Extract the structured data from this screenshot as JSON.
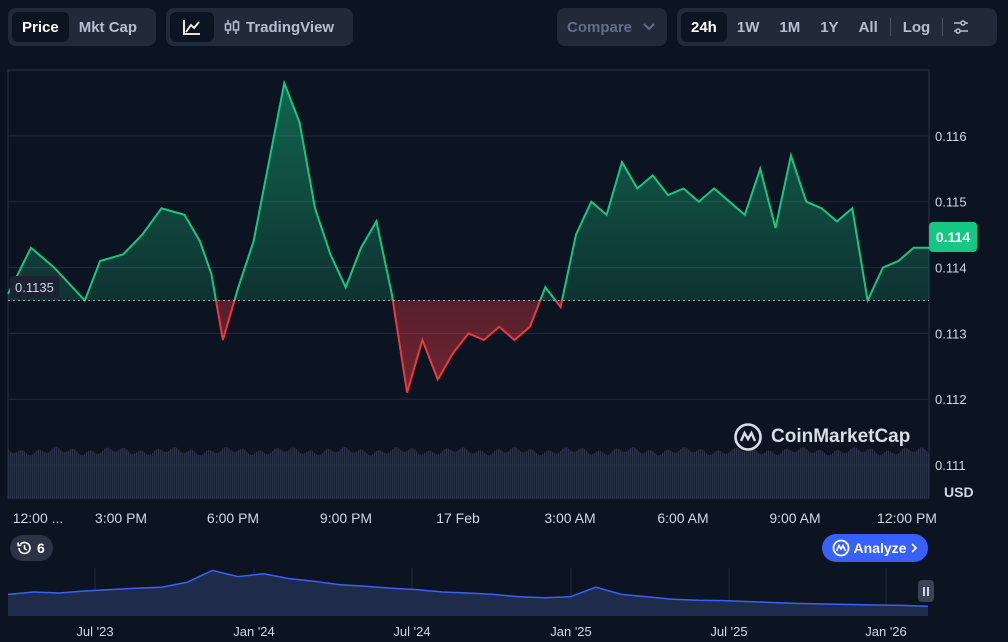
{
  "toolbar": {
    "type_tabs": [
      {
        "label": "Price",
        "active": true
      },
      {
        "label": "Mkt Cap",
        "active": false
      }
    ],
    "chart_style": {
      "line_icon": "line-chart-icon",
      "tradingview_icon": "candlestick-icon",
      "tradingview_label": "TradingView"
    },
    "compare_label": "Compare",
    "ranges": [
      {
        "label": "24h",
        "active": true
      },
      {
        "label": "1W",
        "active": false
      },
      {
        "label": "1M",
        "active": false
      },
      {
        "label": "1Y",
        "active": false
      },
      {
        "label": "All",
        "active": false
      }
    ],
    "log_label": "Log",
    "settings_icon": "sliders-icon"
  },
  "colors": {
    "up": "#16c784",
    "down": "#ea3943",
    "accent": "#3861fb"
  },
  "chart_data": {
    "type": "area",
    "baseline": 0.1135,
    "current_price": "0.114",
    "open_price_label": "0.1135",
    "currency": "USD",
    "ylim": [
      0.1105,
      0.117
    ],
    "yticks": [
      "0.116",
      "0.115",
      "0.114",
      "0.113",
      "0.112",
      "0.111"
    ],
    "xticks": [
      "12:00 ...",
      "3:00 PM",
      "6:00 PM",
      "9:00 PM",
      "17 Feb",
      "3:00 AM",
      "6:00 AM",
      "9:00 AM",
      "12:00 PM"
    ],
    "x": [
      0,
      0.6,
      1.2,
      2.0,
      2.4,
      3.0,
      3.5,
      4.0,
      4.6,
      5.0,
      5.3,
      5.6,
      6.0,
      6.4,
      6.8,
      7.2,
      7.6,
      8.0,
      8.4,
      8.8,
      9.2,
      9.6,
      10.0,
      10.4,
      10.8,
      11.2,
      11.6,
      12.0,
      12.4,
      12.8,
      13.2,
      13.6,
      14.0,
      14.4,
      14.8,
      15.2,
      15.6,
      16.0,
      16.4,
      16.8,
      17.2,
      17.6,
      18.0,
      18.4,
      18.8,
      19.2,
      19.6,
      20.0,
      20.4,
      20.8,
      21.2,
      21.6,
      22.0,
      22.4,
      22.8,
      23.2,
      23.6,
      24.0
    ],
    "prices": [
      0.1136,
      0.1143,
      0.114,
      0.1135,
      0.1141,
      0.1142,
      0.1145,
      0.1149,
      0.1148,
      0.1144,
      0.1139,
      0.1129,
      0.1137,
      0.1144,
      0.1156,
      0.1168,
      0.1162,
      0.1149,
      0.1142,
      0.1137,
      0.1143,
      0.1147,
      0.1136,
      0.1121,
      0.1129,
      0.1123,
      0.1127,
      0.113,
      0.1129,
      0.1131,
      0.1129,
      0.1131,
      0.1137,
      0.1134,
      0.1145,
      0.115,
      0.1148,
      0.1156,
      0.1152,
      0.1154,
      0.1151,
      0.1152,
      0.115,
      0.1152,
      0.115,
      0.1148,
      0.1155,
      0.1146,
      0.1157,
      0.115,
      0.1149,
      0.1147,
      0.1149,
      0.1135,
      0.114,
      0.1141,
      0.1143,
      0.1143
    ],
    "volume": {
      "level": 0.78
    }
  },
  "watermark": {
    "icon": "coinmarketcap-logo-icon",
    "text": "CoinMarketCap"
  },
  "events": {
    "icon": "history-icon",
    "count": "6"
  },
  "analyze": {
    "icon": "ai-analyze-icon",
    "label": "Analyze",
    "chevron": "chevron-right-icon"
  },
  "overview": {
    "labels": [
      "Jul '23",
      "Jan '24",
      "Jul '24",
      "Jan '25",
      "Jul '25",
      "Jan '26"
    ],
    "values": [
      0.45,
      0.5,
      0.48,
      0.52,
      0.55,
      0.58,
      0.6,
      0.7,
      0.95,
      0.82,
      0.88,
      0.78,
      0.72,
      0.65,
      0.62,
      0.58,
      0.55,
      0.5,
      0.48,
      0.45,
      0.4,
      0.38,
      0.4,
      0.6,
      0.45,
      0.4,
      0.35,
      0.33,
      0.32,
      0.3,
      0.28,
      0.26,
      0.25,
      0.24,
      0.23,
      0.22,
      0.2
    ]
  }
}
